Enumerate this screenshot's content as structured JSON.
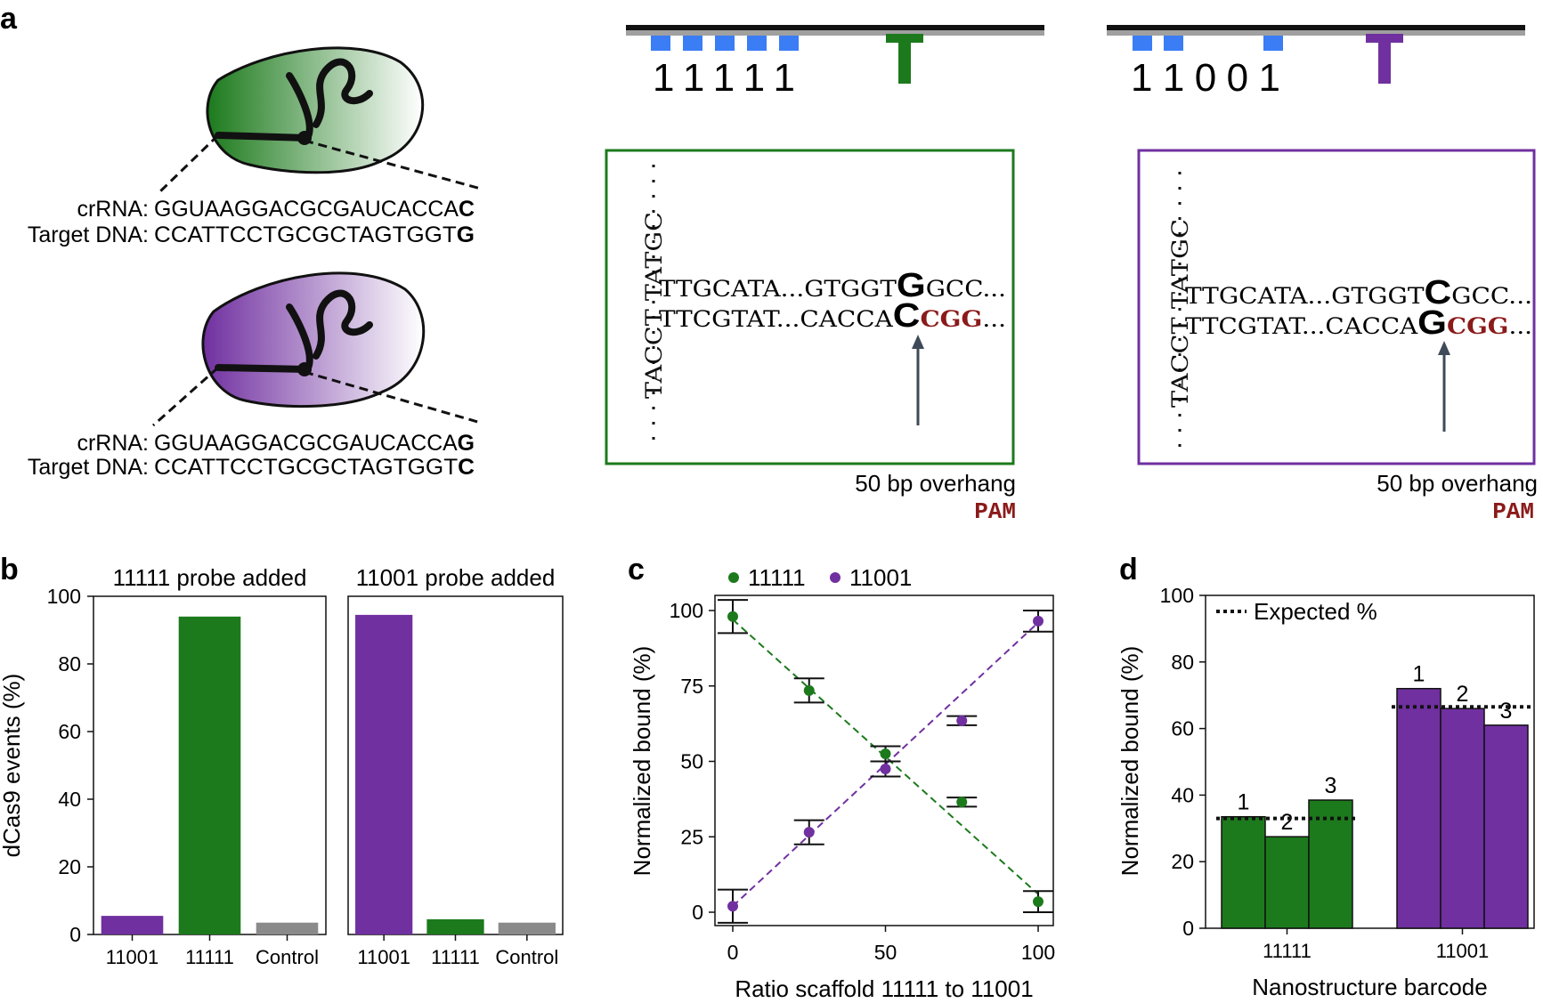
{
  "colors": {
    "green": "#1c7a1c",
    "purple": "#7030a0",
    "gray": "#8a8a8a",
    "blue": "#3a7df5",
    "pam": "#8b1a1a",
    "arrow": "#3f4a58"
  },
  "panel_a": {
    "label": "a",
    "green_guide": {
      "crrna_label": "crRNA:",
      "crrna_seq": "GGUAAGGACGCGAUCACCA",
      "crrna_last": "C",
      "dna_label": "Target DNA:",
      "dna_seq": "CCATTCCTGCGCTAGTGGT",
      "dna_last": "G"
    },
    "purple_guide": {
      "crrna_label": "crRNA:",
      "crrna_seq": "GGUAAGGACGCGAUCACCA",
      "crrna_last": "G",
      "dna_label": "Target DNA:",
      "dna_seq": "CCATTCCTGCGCTAGTGGT",
      "dna_last": "C"
    },
    "barcode_1": {
      "code": "1 1 1 1 1"
    },
    "barcode_2": {
      "code": "1 1 0 0 1"
    },
    "box_green": {
      "left_strand": "TACCT TATGC",
      "top_pre": "TTGCATA",
      "top_mid": "...GTGGT",
      "top_big": "G",
      "top_post": "GCC...",
      "bot_pre": "TTCGTAT",
      "bot_mid": "...CACCA",
      "bot_big": "C",
      "bot_pam": "CGG",
      "bot_post": "...",
      "caption": "50 bp overhang",
      "pam_label": "PAM"
    },
    "box_purple": {
      "left_strand": "TACCT TATGC",
      "top_pre": "TTGCATA",
      "top_mid": "...GTGGT",
      "top_big": "C",
      "top_post": "GCC...",
      "bot_pre": "TTCGTAT",
      "bot_mid": "...CACCA",
      "bot_big": "G",
      "bot_pam": "CGG",
      "bot_post": "...",
      "caption": "50 bp overhang",
      "pam_label": "PAM"
    }
  },
  "panel_b": {
    "label": "b",
    "ylabel": "dCas9 events (%)",
    "charts": [
      {
        "title": "11111 probe added"
      },
      {
        "title": "11001 probe added"
      }
    ]
  },
  "panel_c": {
    "label": "c"
  },
  "panel_d": {
    "label": "d"
  },
  "chart_data": [
    {
      "type": "bar",
      "title": "11111 probe added",
      "ylabel": "dCas9 events (%)",
      "ylim": [
        0,
        100
      ],
      "yticks": [
        0,
        20,
        40,
        60,
        80,
        100
      ],
      "categories": [
        "11001",
        "11111",
        "Control"
      ],
      "values": [
        5.5,
        94,
        3.5
      ],
      "colors": [
        "#7030a0",
        "#1c7a1c",
        "#8a8a8a"
      ]
    },
    {
      "type": "bar",
      "title": "11001 probe added",
      "ylim": [
        0,
        100
      ],
      "categories": [
        "11001",
        "11111",
        "Control"
      ],
      "values": [
        94.5,
        4.5,
        3.5
      ],
      "colors": [
        "#7030a0",
        "#1c7a1c",
        "#8a8a8a"
      ]
    },
    {
      "type": "scatter",
      "xlabel": "Ratio scaffold 11111 to 11001",
      "ylabel": "Normalized bound (%)",
      "xlim": [
        0,
        100
      ],
      "ylim": [
        0,
        100
      ],
      "xticks": [
        0,
        50,
        100
      ],
      "yticks": [
        0,
        25,
        50,
        75,
        100
      ],
      "legend": "top",
      "series": [
        {
          "name": "11111",
          "color": "#1c7a1c",
          "x": [
            0,
            25,
            50,
            75,
            100
          ],
          "y": [
            98,
            73.5,
            52.5,
            36.5,
            3.5
          ],
          "err": [
            5.5,
            4,
            2.5,
            1.5,
            3.5
          ],
          "fit": [
            [
              0,
              97
            ],
            [
              100,
              6
            ]
          ]
        },
        {
          "name": "11001",
          "color": "#7030a0",
          "x": [
            0,
            25,
            50,
            75,
            100
          ],
          "y": [
            2,
            26.5,
            47.5,
            63.5,
            96.5
          ],
          "err": [
            5.5,
            4,
            2.5,
            1.5,
            3.5
          ],
          "fit": [
            [
              0,
              2
            ],
            [
              100,
              96
            ]
          ]
        }
      ]
    },
    {
      "type": "bar",
      "xlabel": "Nanostructure barcode",
      "ylabel": "Normalized bound (%)",
      "ylim": [
        0,
        100
      ],
      "yticks": [
        0,
        20,
        40,
        60,
        80,
        100
      ],
      "legend_label": "Expected %",
      "groups": [
        {
          "name": "11111",
          "color": "#1c7a1c",
          "bar_labels": [
            "1",
            "2",
            "3"
          ],
          "values": [
            33.5,
            27.5,
            38.5
          ],
          "expected": 33
        },
        {
          "name": "11001",
          "color": "#7030a0",
          "bar_labels": [
            "1",
            "2",
            "3"
          ],
          "values": [
            72,
            66,
            61
          ],
          "expected": 66.5
        }
      ]
    }
  ]
}
